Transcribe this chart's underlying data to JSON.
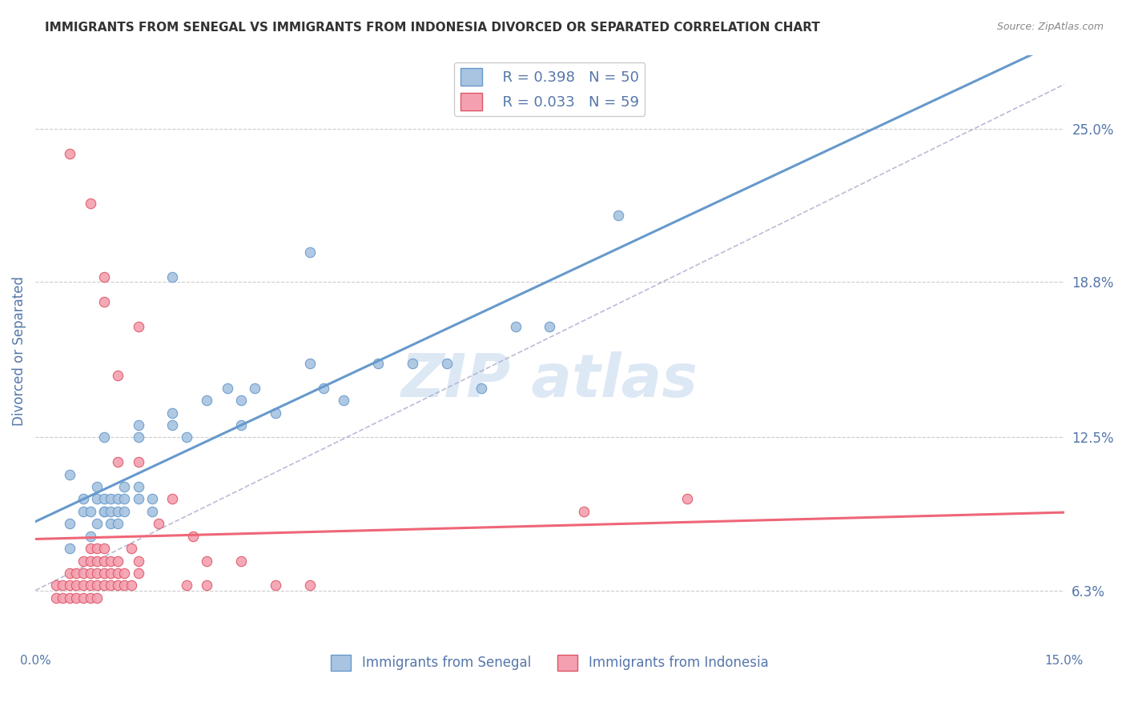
{
  "title": "IMMIGRANTS FROM SENEGAL VS IMMIGRANTS FROM INDONESIA DIVORCED OR SEPARATED CORRELATION CHART",
  "source": "Source: ZipAtlas.com",
  "ylabel": "Divorced or Separated",
  "xlim": [
    0.0,
    0.15
  ],
  "ylim": [
    0.04,
    0.28
  ],
  "yticks": [
    0.063,
    0.125,
    0.188,
    0.25
  ],
  "ytick_labels": [
    "6.3%",
    "12.5%",
    "18.8%",
    "25.0%"
  ],
  "senegal_R": 0.398,
  "senegal_N": 50,
  "indonesia_R": 0.033,
  "indonesia_N": 59,
  "senegal_color": "#a8c4e0",
  "indonesia_color": "#f4a0b0",
  "senegal_edge_color": "#6699cc",
  "indonesia_edge_color": "#dd5566",
  "senegal_line_color": "#6699cc",
  "indonesia_line_color": "#ee6677",
  "diagonal_color": "#aaaacc",
  "watermark_color": "#dde8f5",
  "background_color": "#ffffff",
  "title_color": "#333333",
  "axis_label_color": "#5577aa",
  "legend_label_color": "#5577aa",
  "title_fontsize": 11,
  "senegal_legend": "Immigrants from Senegal",
  "indonesia_legend": "Immigrants from Indonesia",
  "senegal_points": [
    [
      0.005,
      0.08
    ],
    [
      0.005,
      0.09
    ],
    [
      0.005,
      0.11
    ],
    [
      0.007,
      0.1
    ],
    [
      0.007,
      0.095
    ],
    [
      0.008,
      0.095
    ],
    [
      0.008,
      0.085
    ],
    [
      0.009,
      0.09
    ],
    [
      0.009,
      0.1
    ],
    [
      0.009,
      0.105
    ],
    [
      0.01,
      0.095
    ],
    [
      0.01,
      0.095
    ],
    [
      0.01,
      0.1
    ],
    [
      0.01,
      0.125
    ],
    [
      0.011,
      0.09
    ],
    [
      0.011,
      0.095
    ],
    [
      0.011,
      0.1
    ],
    [
      0.012,
      0.09
    ],
    [
      0.012,
      0.095
    ],
    [
      0.012,
      0.1
    ],
    [
      0.013,
      0.095
    ],
    [
      0.013,
      0.1
    ],
    [
      0.013,
      0.105
    ],
    [
      0.015,
      0.1
    ],
    [
      0.015,
      0.105
    ],
    [
      0.015,
      0.125
    ],
    [
      0.015,
      0.13
    ],
    [
      0.017,
      0.095
    ],
    [
      0.017,
      0.1
    ],
    [
      0.02,
      0.13
    ],
    [
      0.02,
      0.135
    ],
    [
      0.022,
      0.125
    ],
    [
      0.025,
      0.14
    ],
    [
      0.028,
      0.145
    ],
    [
      0.03,
      0.13
    ],
    [
      0.03,
      0.14
    ],
    [
      0.032,
      0.145
    ],
    [
      0.035,
      0.135
    ],
    [
      0.04,
      0.2
    ],
    [
      0.04,
      0.155
    ],
    [
      0.042,
      0.145
    ],
    [
      0.045,
      0.14
    ],
    [
      0.05,
      0.155
    ],
    [
      0.055,
      0.155
    ],
    [
      0.06,
      0.155
    ],
    [
      0.065,
      0.145
    ],
    [
      0.07,
      0.17
    ],
    [
      0.075,
      0.17
    ],
    [
      0.02,
      0.19
    ],
    [
      0.085,
      0.215
    ]
  ],
  "indonesia_points": [
    [
      0.003,
      0.06
    ],
    [
      0.003,
      0.065
    ],
    [
      0.004,
      0.06
    ],
    [
      0.004,
      0.065
    ],
    [
      0.005,
      0.06
    ],
    [
      0.005,
      0.065
    ],
    [
      0.005,
      0.07
    ],
    [
      0.006,
      0.06
    ],
    [
      0.006,
      0.065
    ],
    [
      0.006,
      0.07
    ],
    [
      0.007,
      0.06
    ],
    [
      0.007,
      0.065
    ],
    [
      0.007,
      0.07
    ],
    [
      0.007,
      0.075
    ],
    [
      0.008,
      0.06
    ],
    [
      0.008,
      0.065
    ],
    [
      0.008,
      0.07
    ],
    [
      0.008,
      0.075
    ],
    [
      0.008,
      0.08
    ],
    [
      0.009,
      0.06
    ],
    [
      0.009,
      0.065
    ],
    [
      0.009,
      0.07
    ],
    [
      0.009,
      0.075
    ],
    [
      0.009,
      0.08
    ],
    [
      0.01,
      0.065
    ],
    [
      0.01,
      0.07
    ],
    [
      0.01,
      0.075
    ],
    [
      0.01,
      0.08
    ],
    [
      0.011,
      0.065
    ],
    [
      0.011,
      0.07
    ],
    [
      0.011,
      0.075
    ],
    [
      0.012,
      0.065
    ],
    [
      0.012,
      0.07
    ],
    [
      0.012,
      0.075
    ],
    [
      0.013,
      0.065
    ],
    [
      0.013,
      0.07
    ],
    [
      0.014,
      0.065
    ],
    [
      0.014,
      0.08
    ],
    [
      0.015,
      0.07
    ],
    [
      0.015,
      0.075
    ],
    [
      0.018,
      0.09
    ],
    [
      0.02,
      0.1
    ],
    [
      0.022,
      0.065
    ],
    [
      0.023,
      0.085
    ],
    [
      0.025,
      0.065
    ],
    [
      0.025,
      0.075
    ],
    [
      0.03,
      0.075
    ],
    [
      0.035,
      0.065
    ],
    [
      0.04,
      0.065
    ],
    [
      0.015,
      0.17
    ],
    [
      0.01,
      0.19
    ],
    [
      0.012,
      0.15
    ],
    [
      0.012,
      0.115
    ],
    [
      0.01,
      0.18
    ],
    [
      0.08,
      0.095
    ],
    [
      0.095,
      0.1
    ],
    [
      0.008,
      0.22
    ],
    [
      0.005,
      0.24
    ],
    [
      0.015,
      0.115
    ]
  ]
}
